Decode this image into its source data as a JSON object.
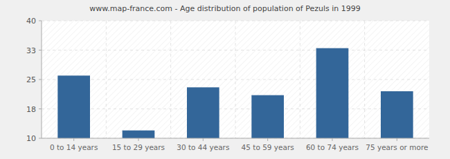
{
  "chart_data": {
    "type": "bar",
    "title": "www.map-france.com - Age distribution of population of Pezuls in 1999",
    "categories": [
      "0 to 14 years",
      "15 to 29 years",
      "30 to 44 years",
      "45 to 59 years",
      "60 to 74 years",
      "75 years or more"
    ],
    "values": [
      26,
      12,
      23,
      21,
      33,
      22
    ],
    "color": "#336699",
    "ylim": [
      10,
      40
    ],
    "yticks": [
      10,
      {
        "value": 17.5,
        "label": "18"
      },
      25,
      {
        "value": 32.5,
        "label": "33"
      },
      40
    ],
    "grid": true
  }
}
